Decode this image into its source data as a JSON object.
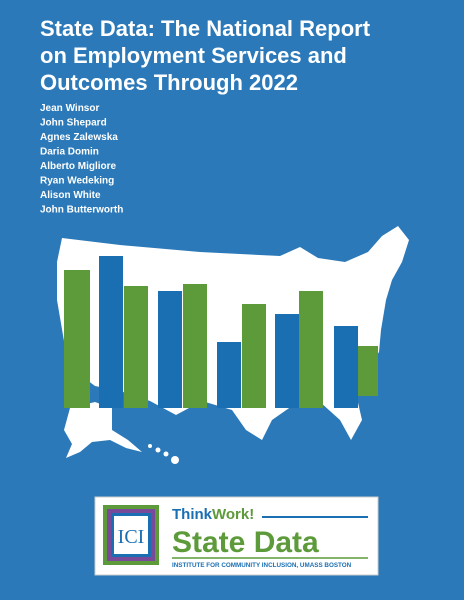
{
  "header": {
    "title_lines": [
      "State Data: The National Report",
      "on Employment Services and",
      "Outcomes Through 2022"
    ]
  },
  "authors": [
    "Jean Winsor",
    "John Shepard",
    "Agnes Zalewska",
    "Daria Domin",
    "Alberto Migliore",
    "Ryan Wedeking",
    "Alison White",
    "John Butterworth"
  ],
  "logo": {
    "icon": "ICI",
    "brand_think": "Think",
    "brand_work": "Work!",
    "name": "State Data",
    "tagline": "INSTITUTE FOR COMMUNITY INCLUSION, UMASS BOSTON"
  }
}
